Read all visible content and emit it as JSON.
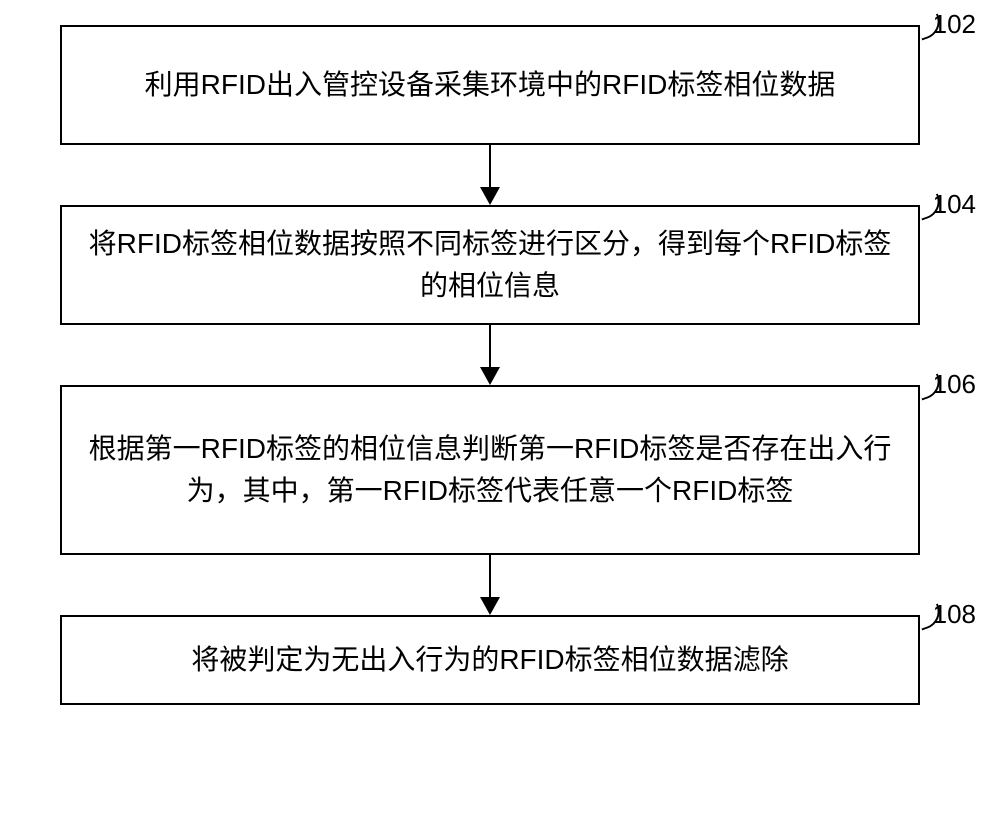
{
  "flowchart": {
    "type": "flowchart",
    "background_color": "#ffffff",
    "box_border_color": "#000000",
    "box_border_width": 2,
    "text_color": "#000000",
    "font_size": 28,
    "label_font_size": 26,
    "arrow_color": "#000000",
    "steps": [
      {
        "id": "step1",
        "label": "102",
        "text": "利用RFID出入管控设备采集环境中的RFID标签相位数据"
      },
      {
        "id": "step2",
        "label": "104",
        "text": "将RFID标签相位数据按照不同标签进行区分，得到每个RFID标签的相位信息"
      },
      {
        "id": "step3",
        "label": "106",
        "text": "根据第一RFID标签的相位信息判断第一RFID标签是否存在出入行为，其中，第一RFID标签代表任意一个RFID标签"
      },
      {
        "id": "step4",
        "label": "108",
        "text": "将被判定为无出入行为的RFID标签相位数据滤除"
      }
    ]
  }
}
